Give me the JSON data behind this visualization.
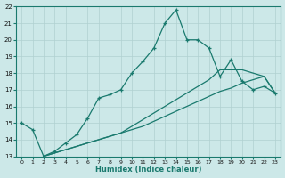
{
  "xlabel": "Humidex (Indice chaleur)",
  "xlim": [
    -0.5,
    23.5
  ],
  "ylim": [
    13,
    22
  ],
  "yticks": [
    13,
    14,
    15,
    16,
    17,
    18,
    19,
    20,
    21,
    22
  ],
  "xticks": [
    0,
    1,
    2,
    3,
    4,
    5,
    6,
    7,
    8,
    9,
    10,
    11,
    12,
    13,
    14,
    15,
    16,
    17,
    18,
    19,
    20,
    21,
    22,
    23
  ],
  "bg_color": "#cce8e8",
  "grid_color": "#b0d0d0",
  "line_color": "#1a7a6e",
  "line1_x": [
    0,
    1,
    2,
    3,
    4,
    5,
    6,
    7,
    8,
    9,
    10,
    11,
    12,
    13,
    14,
    15,
    16,
    17,
    18,
    19,
    20,
    21,
    22,
    23
  ],
  "line1_y": [
    15.0,
    14.6,
    13.0,
    13.3,
    13.8,
    14.3,
    15.3,
    16.5,
    16.7,
    17.0,
    18.0,
    18.7,
    19.5,
    21.0,
    21.8,
    20.0,
    20.0,
    19.5,
    17.8,
    18.8,
    17.5,
    17.0,
    17.2,
    16.8
  ],
  "line2_x": [
    2,
    3,
    4,
    5,
    6,
    7,
    8,
    9,
    10,
    11,
    12,
    13,
    14,
    15,
    16,
    17,
    18,
    19,
    20,
    21,
    22,
    23
  ],
  "line2_y": [
    13.0,
    13.2,
    13.4,
    13.6,
    13.8,
    14.0,
    14.2,
    14.4,
    14.6,
    14.8,
    15.1,
    15.4,
    15.7,
    16.0,
    16.3,
    16.6,
    16.9,
    17.1,
    17.4,
    17.6,
    17.8,
    16.8
  ],
  "line3_x": [
    2,
    3,
    4,
    5,
    6,
    7,
    8,
    9,
    10,
    11,
    12,
    13,
    14,
    15,
    16,
    17,
    18,
    19,
    20,
    21,
    22,
    23
  ],
  "line3_y": [
    13.0,
    13.2,
    13.4,
    13.6,
    13.8,
    14.0,
    14.2,
    14.4,
    14.8,
    15.2,
    15.6,
    16.0,
    16.4,
    16.8,
    17.2,
    17.6,
    18.2,
    18.2,
    18.2,
    18.0,
    17.8,
    16.8
  ]
}
